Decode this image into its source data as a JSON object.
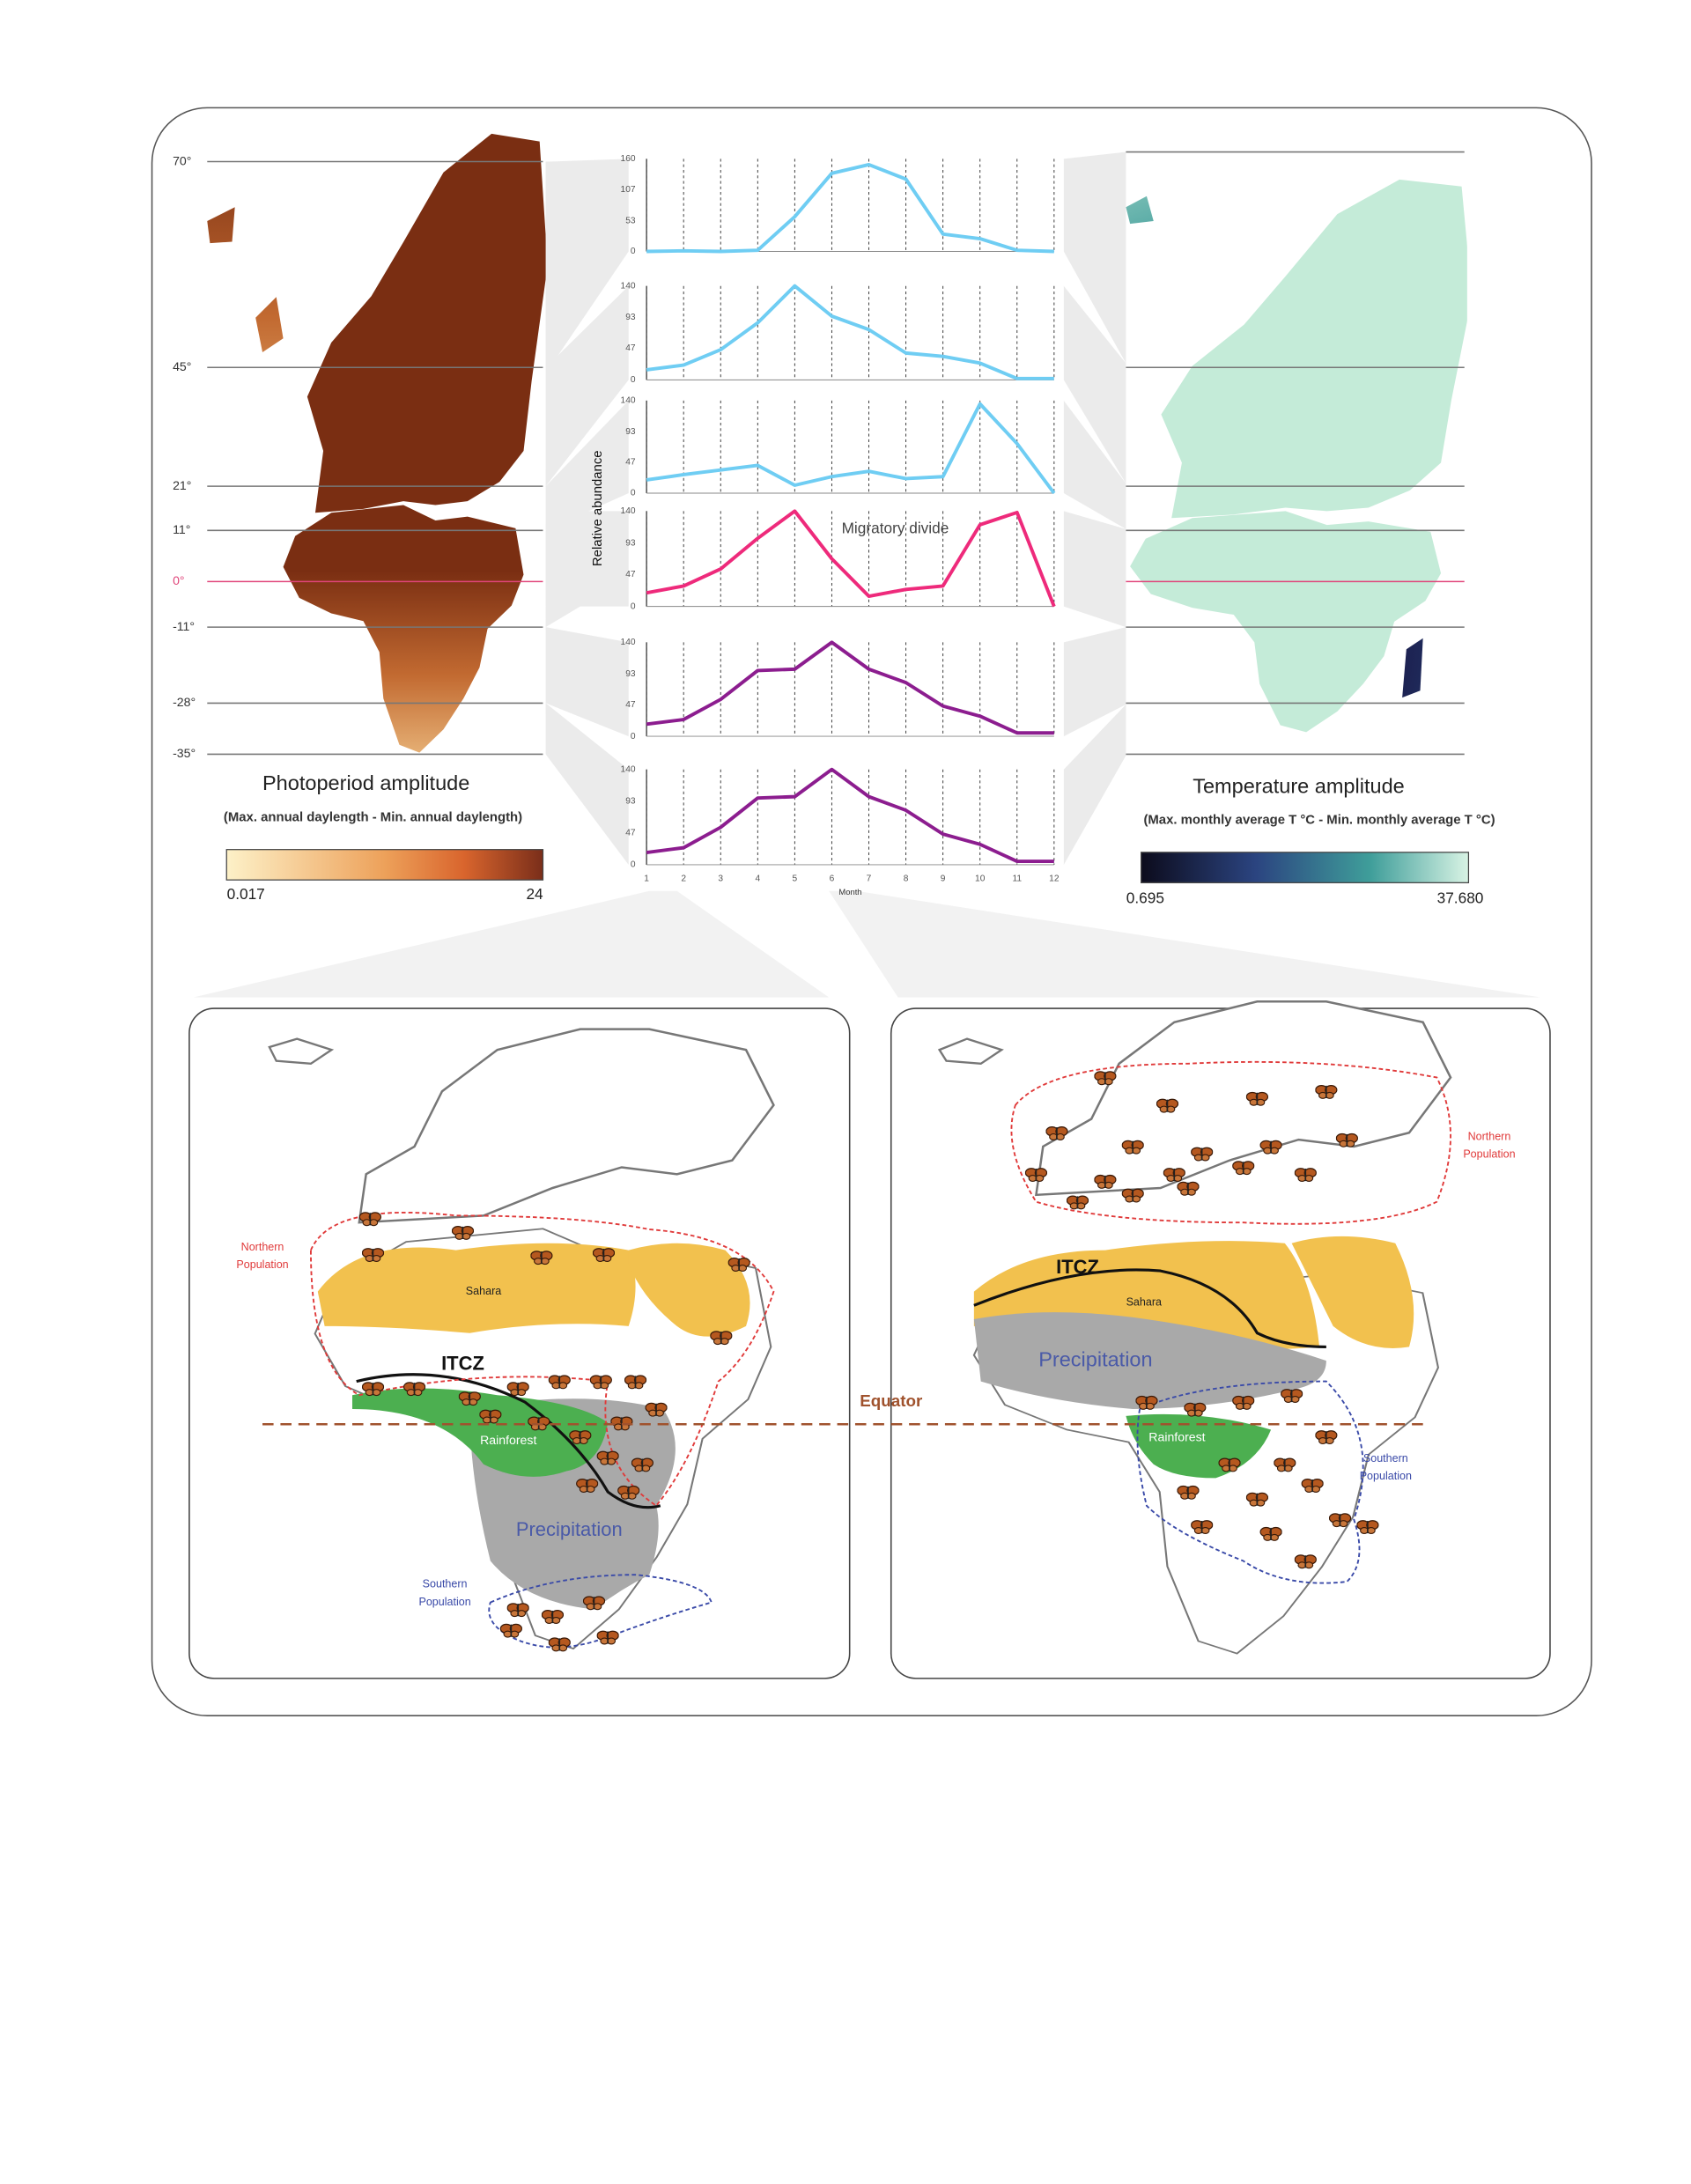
{
  "chart_data": [
    {
      "type": "line",
      "x": [
        1,
        2,
        3,
        4,
        5,
        6,
        7,
        8,
        9,
        10,
        11,
        12
      ],
      "xlim": [
        1,
        12
      ],
      "xgrid": true,
      "values": [
        0,
        1,
        0,
        2,
        60,
        135,
        150,
        125,
        30,
        22,
        2,
        0
      ],
      "color": "#6fcdf3",
      "ylim": [
        0,
        160
      ],
      "yticks": [
        0,
        53,
        107,
        160
      ]
    },
    {
      "type": "line",
      "x": [
        1,
        2,
        3,
        4,
        5,
        6,
        7,
        8,
        9,
        10,
        11,
        12
      ],
      "xlim": [
        1,
        12
      ],
      "xgrid": true,
      "values": [
        15,
        22,
        45,
        85,
        140,
        95,
        75,
        40,
        35,
        25,
        2,
        2
      ],
      "color": "#6fcdf3",
      "ylim": [
        0,
        140
      ],
      "yticks": [
        0,
        47,
        93,
        140
      ]
    },
    {
      "type": "line",
      "x": [
        1,
        2,
        3,
        4,
        5,
        6,
        7,
        8,
        9,
        10,
        11,
        12
      ],
      "xlim": [
        1,
        12
      ],
      "xgrid": true,
      "values": [
        20,
        28,
        35,
        42,
        12,
        25,
        33,
        22,
        25,
        135,
        75,
        0
      ],
      "color": "#6fcdf3",
      "ylim": [
        0,
        140
      ],
      "yticks": [
        0,
        47,
        93,
        140
      ]
    },
    {
      "type": "line",
      "x": [
        1,
        2,
        3,
        4,
        5,
        6,
        7,
        8,
        9,
        10,
        11,
        12
      ],
      "xlim": [
        1,
        12
      ],
      "xgrid": true,
      "values": [
        20,
        30,
        55,
        100,
        140,
        70,
        15,
        25,
        30,
        120,
        138,
        0
      ],
      "color": "#ee2a7b",
      "ylim": [
        0,
        140
      ],
      "yticks": [
        0,
        47,
        93,
        140
      ],
      "ylabel": "Relative abundance",
      "annotation": "Migratory divide"
    },
    {
      "type": "line",
      "x": [
        1,
        2,
        3,
        4,
        5,
        6,
        7,
        8,
        9,
        10,
        11,
        12
      ],
      "xlim": [
        1,
        12
      ],
      "xgrid": true,
      "values": [
        18,
        25,
        55,
        98,
        100,
        140,
        100,
        80,
        45,
        30,
        5,
        5
      ],
      "color": "#8c1d8f",
      "ylim": [
        0,
        140
      ],
      "yticks": [
        0,
        47,
        93,
        140
      ]
    },
    {
      "type": "line",
      "x": [
        1,
        2,
        3,
        4,
        5,
        6,
        7,
        8,
        9,
        10,
        11,
        12
      ],
      "xlim": [
        1,
        12
      ],
      "xgrid": true,
      "values": [
        18,
        25,
        55,
        98,
        100,
        140,
        100,
        80,
        45,
        30,
        5,
        5
      ],
      "color": "#8c1d8f",
      "ylim": [
        0,
        140
      ],
      "yticks": [
        0,
        47,
        93,
        140
      ],
      "xticks": [
        1,
        2,
        3,
        4,
        5,
        6,
        7,
        8,
        9,
        10,
        11,
        12
      ],
      "xlabel": "Month"
    }
  ],
  "photoperiod_map": {
    "latitudes": [
      "70°",
      "45°",
      "21°",
      "11°",
      "0°",
      "-11°",
      "-28°",
      "-35°"
    ],
    "title": "Photoperiod amplitude",
    "subtitle": "(Max. annual  daylength - Min. annual daylength)",
    "scale_min": "0.017",
    "scale_max": "24"
  },
  "temperature_map": {
    "title": "Temperature amplitude",
    "subtitle": "(Max. monthly average T °C - Min. monthly average T °C)",
    "scale_min": "0.695",
    "scale_max": "37.680"
  },
  "migration_maps": [
    {
      "northern_population": [
        "Northern",
        "Population"
      ],
      "sahara": "Sahara",
      "itcz": "ITCZ",
      "rainforest": "Rainforest",
      "precipitation": "Precipitation",
      "southern_population": [
        "Southern",
        "Population"
      ]
    },
    {
      "northern_population": [
        "Northern",
        "Population"
      ],
      "sahara": "Sahara",
      "itcz": "ITCZ",
      "rainforest": "Rainforest",
      "precipitation": "Precipitation",
      "southern_population": [
        "Southern",
        "Population"
      ]
    }
  ],
  "equator": "Equator"
}
